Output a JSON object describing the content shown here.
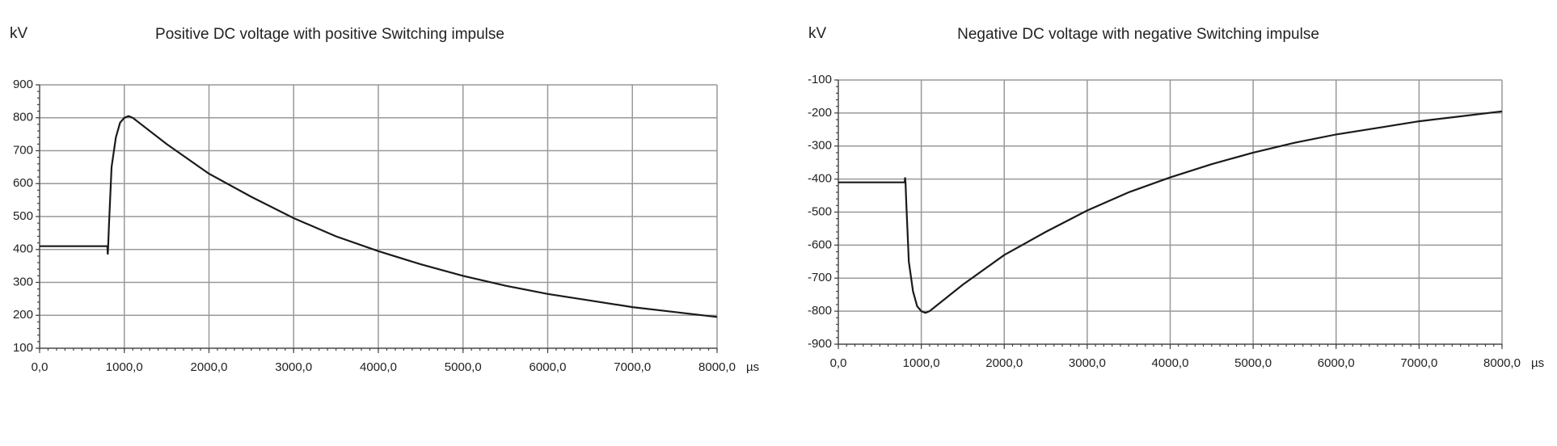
{
  "chart_data": [
    {
      "type": "line",
      "title": "Positive DC voltage with positive Switching impulse",
      "y_label": "kV",
      "x_label": "µs",
      "color": "#1a1a1a",
      "grid": true,
      "x": [
        0,
        800,
        805,
        810,
        820,
        850,
        900,
        950,
        1000,
        1050,
        1100,
        1500,
        2000,
        2500,
        3000,
        3500,
        4000,
        4500,
        5000,
        5500,
        6000,
        6500,
        7000,
        7500,
        8000
      ],
      "values": [
        410,
        410,
        385,
        410,
        480,
        650,
        740,
        785,
        800,
        805,
        800,
        720,
        630,
        560,
        495,
        440,
        395,
        355,
        320,
        290,
        265,
        245,
        225,
        210,
        195
      ],
      "xlim": [
        0,
        8000
      ],
      "ylim": [
        100,
        900
      ],
      "xticks": [
        {
          "value": 0,
          "label": "0,0"
        },
        {
          "value": 1000,
          "label": "1000,0"
        },
        {
          "value": 2000,
          "label": "2000,0"
        },
        {
          "value": 3000,
          "label": "3000,0"
        },
        {
          "value": 4000,
          "label": "4000,0"
        },
        {
          "value": 5000,
          "label": "5000,0"
        },
        {
          "value": 6000,
          "label": "6000,0"
        },
        {
          "value": 7000,
          "label": "7000,0"
        },
        {
          "value": 8000,
          "label": "8000,0"
        }
      ],
      "yticks": [
        100,
        200,
        300,
        400,
        500,
        600,
        700,
        800,
        900
      ]
    },
    {
      "type": "line",
      "title": "Negative DC voltage with negative Switching impulse",
      "y_label": "kV",
      "x_label": "µs",
      "color": "#1a1a1a",
      "grid": true,
      "x": [
        0,
        800,
        805,
        810,
        820,
        850,
        900,
        950,
        1000,
        1050,
        1100,
        1500,
        2000,
        2500,
        3000,
        3500,
        4000,
        4500,
        5000,
        5500,
        6000,
        6500,
        7000,
        7500,
        8000
      ],
      "values": [
        -410,
        -410,
        -395,
        -410,
        -480,
        -650,
        -740,
        -785,
        -800,
        -805,
        -800,
        -720,
        -630,
        -560,
        -495,
        -440,
        -395,
        -355,
        -320,
        -290,
        -265,
        -245,
        -225,
        -210,
        -195
      ],
      "xlim": [
        0,
        8000
      ],
      "ylim": [
        -900,
        -100
      ],
      "xticks": [
        {
          "value": 0,
          "label": "0,0"
        },
        {
          "value": 1000,
          "label": "1000,0"
        },
        {
          "value": 2000,
          "label": "2000,0"
        },
        {
          "value": 3000,
          "label": "3000,0"
        },
        {
          "value": 4000,
          "label": "4000,0"
        },
        {
          "value": 5000,
          "label": "5000,0"
        },
        {
          "value": 6000,
          "label": "6000,0"
        },
        {
          "value": 7000,
          "label": "7000,0"
        },
        {
          "value": 8000,
          "label": "8000,0"
        }
      ],
      "yticks": [
        -900,
        -800,
        -700,
        -600,
        -500,
        -400,
        -300,
        -200,
        -100
      ]
    }
  ]
}
